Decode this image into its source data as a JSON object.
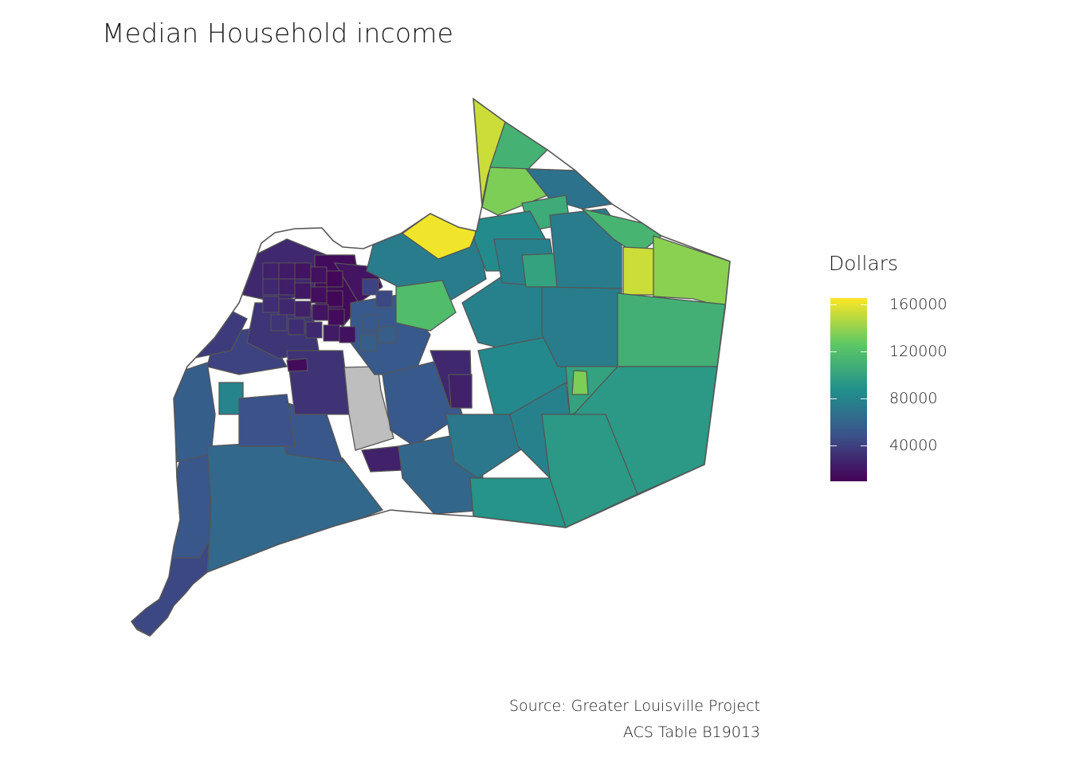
{
  "title": "Median Household income",
  "legend": {
    "title": "Dollars",
    "ticks": [
      "160000",
      "120000",
      "80000",
      "40000"
    ],
    "palette": [
      "#440154",
      "#3b528b",
      "#21908c",
      "#5dc863",
      "#fde725"
    ],
    "missing_color": "#bebebe",
    "border_color": "#555555"
  },
  "caption": {
    "line1": "Source: Greater Louisville Project",
    "line2": "ACS Table B19013"
  }
}
